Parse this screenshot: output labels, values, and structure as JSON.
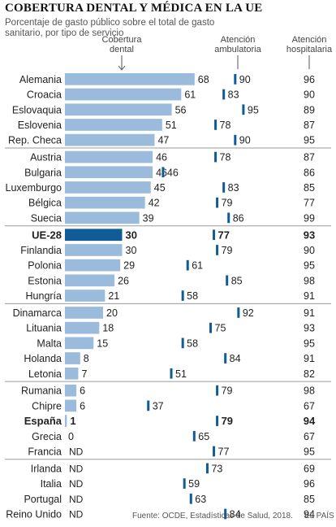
{
  "title": "COBERTURA DENTAL Y MÉDICA EN LA UE",
  "subtitle": "Porcentaje de gasto público sobre el total de gasto sanitario, por tipo de servicio",
  "source": "Fuente: OCDE, Estadísticas de Salud, 2018.",
  "brand": "EL PAÍS",
  "colors": {
    "bar": "#9bbbdc",
    "bar_highlight": "#0f5c96",
    "marker": "#0f5c96",
    "separator": "#9a9a9a",
    "text": "#222222"
  },
  "chart_data": {
    "type": "bar",
    "columns": [
      {
        "key": "dental",
        "label": "Cobertura dental"
      },
      {
        "key": "ambulatory",
        "label": "Atención ambulatoria"
      },
      {
        "key": "hospital",
        "label": "Atención hospitalaria"
      }
    ],
    "missing_label": "ND",
    "groups": [
      [
        {
          "country": "Alemania",
          "dental": 68,
          "ambulatory": 90,
          "hospital": 96
        },
        {
          "country": "Croacia",
          "dental": 61,
          "ambulatory": 83,
          "hospital": 90
        },
        {
          "country": "Eslovaquia",
          "dental": 56,
          "ambulatory": 95,
          "hospital": 89
        },
        {
          "country": "Eslovenia",
          "dental": 51,
          "ambulatory": 78,
          "hospital": 87
        },
        {
          "country": "Rep. Checa",
          "dental": 47,
          "ambulatory": 90,
          "hospital": 95
        }
      ],
      [
        {
          "country": "Austria",
          "dental": 46,
          "ambulatory": 78,
          "hospital": 87
        },
        {
          "country": "Bulgaria",
          "dental": 46,
          "ambulatory": 46,
          "hospital": 86
        },
        {
          "country": "Luxemburgo",
          "dental": 45,
          "ambulatory": 83,
          "hospital": 85
        },
        {
          "country": "Bélgica",
          "dental": 42,
          "ambulatory": 79,
          "hospital": 77
        },
        {
          "country": "Suecia",
          "dental": 39,
          "ambulatory": 86,
          "hospital": 99
        }
      ],
      [
        {
          "country": "UE-28",
          "dental": 30,
          "ambulatory": 77,
          "hospital": 93,
          "highlight": true
        },
        {
          "country": "Finlandia",
          "dental": 30,
          "ambulatory": 79,
          "hospital": 90
        },
        {
          "country": "Polonia",
          "dental": 29,
          "ambulatory": 61,
          "hospital": 95
        },
        {
          "country": "Estonia",
          "dental": 26,
          "ambulatory": 85,
          "hospital": 98
        },
        {
          "country": "Hungría",
          "dental": 21,
          "ambulatory": 58,
          "hospital": 91
        }
      ],
      [
        {
          "country": "Dinamarca",
          "dental": 20,
          "ambulatory": 92,
          "hospital": 91
        },
        {
          "country": "Lituania",
          "dental": 18,
          "ambulatory": 75,
          "hospital": 93
        },
        {
          "country": "Malta",
          "dental": 15,
          "ambulatory": 58,
          "hospital": 95
        },
        {
          "country": "Holanda",
          "dental": 8,
          "ambulatory": 84,
          "hospital": 91
        },
        {
          "country": "Letonia",
          "dental": 7,
          "ambulatory": 51,
          "hospital": 82
        }
      ],
      [
        {
          "country": "Rumania",
          "dental": 6,
          "ambulatory": 79,
          "hospital": 98
        },
        {
          "country": "Chipre",
          "dental": 6,
          "ambulatory": 37,
          "hospital": 67
        },
        {
          "country": "España",
          "dental": 1,
          "ambulatory": 79,
          "hospital": 94,
          "bold": true
        },
        {
          "country": "Grecia",
          "dental": 0,
          "ambulatory": 65,
          "hospital": 67
        },
        {
          "country": "Francia",
          "dental": null,
          "ambulatory": 77,
          "hospital": 95
        }
      ],
      [
        {
          "country": "Irlanda",
          "dental": null,
          "ambulatory": 73,
          "hospital": 69
        },
        {
          "country": "Italia",
          "dental": null,
          "ambulatory": 59,
          "hospital": 96
        },
        {
          "country": "Portugal",
          "dental": null,
          "ambulatory": 63,
          "hospital": 85
        },
        {
          "country": "Reino Unido",
          "dental": null,
          "ambulatory": 84,
          "hospital": 94
        }
      ]
    ]
  }
}
